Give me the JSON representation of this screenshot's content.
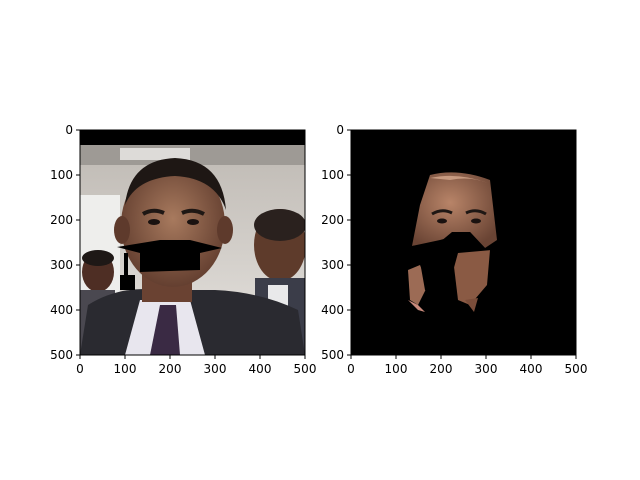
{
  "figure": {
    "panels": [
      {
        "name": "original-photo",
        "image": "portrait photo of a man in a suit and tie with a black occlusion patch over mouth area; another man in background right and a boy at left",
        "xlim": [
          0,
          500
        ],
        "ylim": [
          500,
          0
        ],
        "xticks": [
          "0",
          "100",
          "200",
          "300",
          "400",
          "500"
        ],
        "yticks": [
          "0",
          "100",
          "200",
          "300",
          "400",
          "500"
        ]
      },
      {
        "name": "segmented-face",
        "image": "face skin region extracted on black background with the occlusion patch removed",
        "xlim": [
          0,
          500
        ],
        "ylim": [
          500,
          0
        ],
        "xticks": [
          "0",
          "100",
          "200",
          "300",
          "400",
          "500"
        ],
        "yticks": [
          "0",
          "100",
          "200",
          "300",
          "400",
          "500"
        ]
      }
    ]
  },
  "colors": {
    "background": "#ffffff",
    "axis": "#000000",
    "skin": "#9a6a52",
    "skin_dark": "#6e4636",
    "suit": "#2a2a30",
    "wall": "#d9d5cf"
  }
}
